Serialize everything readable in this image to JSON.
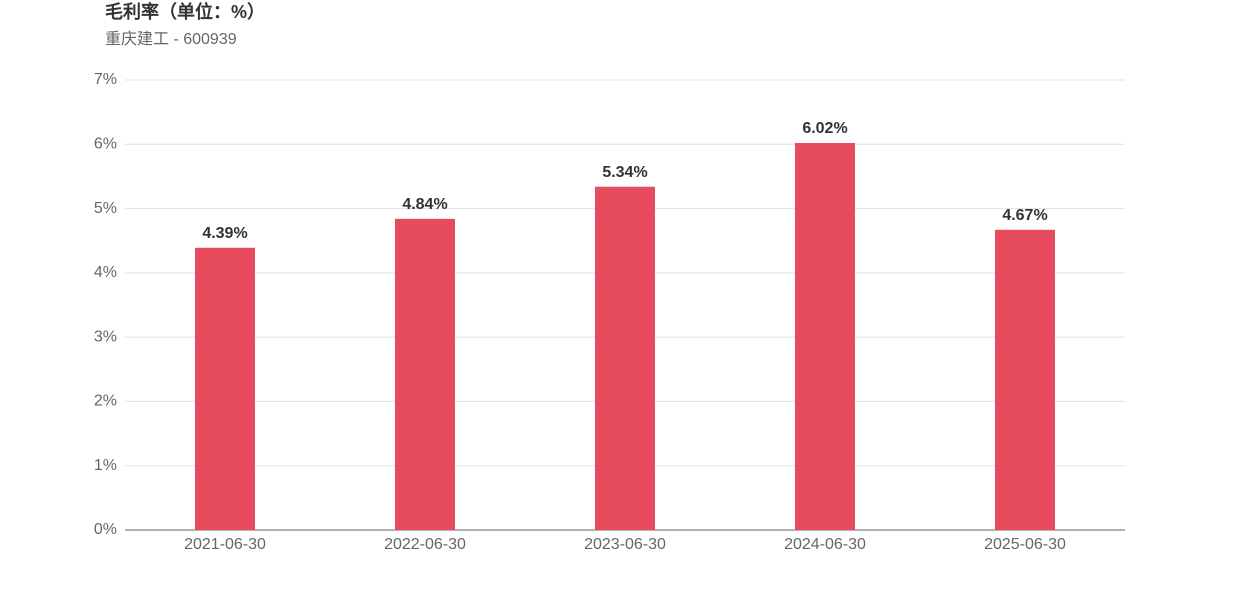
{
  "chart_data": {
    "type": "bar",
    "title": "毛利率（单位：%）",
    "subtitle": "重庆建工 - 600939",
    "categories": [
      "2021-06-30",
      "2022-06-30",
      "2023-06-30",
      "2024-06-30",
      "2025-06-30"
    ],
    "values": [
      4.39,
      4.84,
      5.34,
      6.02,
      4.67
    ],
    "value_labels": [
      "4.39%",
      "4.84%",
      "5.34%",
      "6.02%",
      "4.67%"
    ],
    "color": "#e64b5e",
    "ylim": [
      0,
      7
    ],
    "yticks": [
      {
        "value": 0,
        "label": "0%"
      },
      {
        "value": 1,
        "label": "1%"
      },
      {
        "value": 2,
        "label": "2%"
      },
      {
        "value": 3,
        "label": "3%"
      },
      {
        "value": 4,
        "label": "4%"
      },
      {
        "value": 5,
        "label": "5%"
      },
      {
        "value": 6,
        "label": "6%"
      },
      {
        "value": 7,
        "label": "7%"
      }
    ],
    "grid": true
  }
}
